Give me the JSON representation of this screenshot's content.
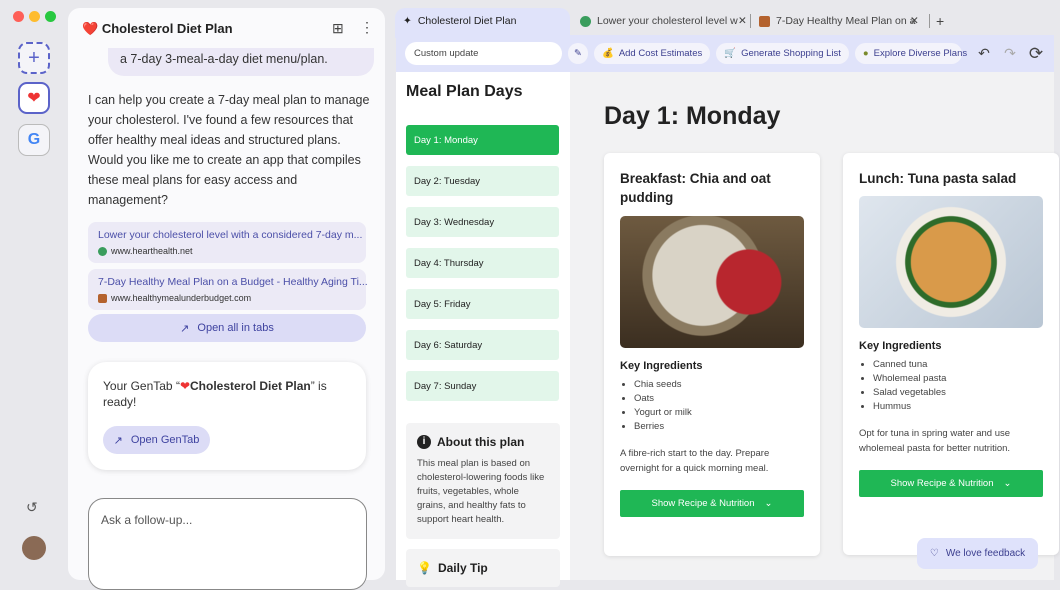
{
  "colors": {
    "accent": "#1fb755",
    "toolbar": "#e0e3fa",
    "link": "#4b4fa8"
  },
  "chat": {
    "title": "Cholesterol Diet Plan",
    "user_message": "a 7-day 3-meal-a-day diet menu/plan.",
    "answer": "I can help you create a 7-day meal plan to manage your cholesterol. I've found a few resources that offer healthy meal ideas and structured plans. Would you like me to create an app that compiles these meal plans for easy access and management?",
    "sources": [
      {
        "title": "Lower your cholesterol level with a considered 7-day m...",
        "url": "www.hearthealth.net"
      },
      {
        "title": "7-Day Healthy Meal Plan on a Budget - Healthy Aging Ti...",
        "url": "www.healthymealunderbudget.com"
      }
    ],
    "open_all": "Open all in tabs",
    "ready_prefix": "Your GenTab “",
    "ready_name": "Cholesterol Diet Plan",
    "ready_suffix": "” is ready!",
    "open_gentab": "Open GenTab",
    "input_placeholder": "Ask a follow-up..."
  },
  "tabs": [
    {
      "label": "Cholesterol Diet Plan",
      "active": true
    },
    {
      "label": "Lower your cholesterol level w"
    },
    {
      "label": "7-Day Healthy Meal Plan on a"
    }
  ],
  "toolbar": {
    "custom_placeholder": "Custom update",
    "chips": [
      "Add Cost Estimates",
      "Generate Shopping List",
      "Explore Diverse Plans"
    ]
  },
  "sidebar": {
    "title": "Meal Plan Days",
    "days": [
      "Day 1: Monday",
      "Day 2: Tuesday",
      "Day 3: Wednesday",
      "Day 4: Thursday",
      "Day 5: Friday",
      "Day 6: Saturday",
      "Day 7: Sunday"
    ],
    "about_title": "About this plan",
    "about_text": "This meal plan is based on cholesterol-lowering foods like fruits, vegetables, whole grains, and healthy fats to support heart health.",
    "tip_title": "Daily Tip"
  },
  "main": {
    "day_title": "Day 1: Monday",
    "key_label": "Key Ingredients",
    "recipe_button": "Show Recipe & Nutrition",
    "meals": [
      {
        "title": "Breakfast: Chia and oat pudding",
        "ingredients": [
          "Chia seeds",
          "Oats",
          "Yogurt or milk",
          "Berries"
        ],
        "note": "A fibre-rich start to the day. Prepare overnight for a quick morning meal."
      },
      {
        "title": "Lunch: Tuna pasta salad",
        "ingredients": [
          "Canned tuna",
          "Wholemeal pasta",
          "Salad vegetables",
          "Hummus"
        ],
        "note": "Opt for tuna in spring water and use wholemeal pasta for better nutrition."
      }
    ],
    "feedback": "We love feedback"
  }
}
